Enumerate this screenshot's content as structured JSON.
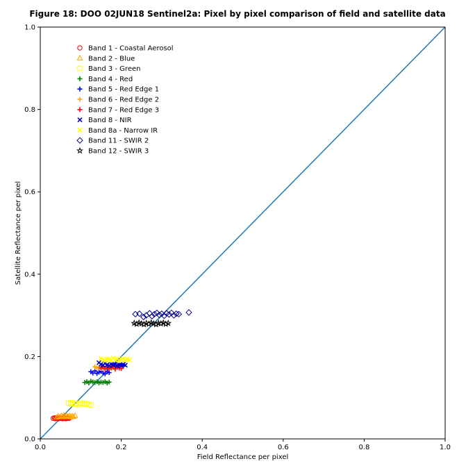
{
  "chart_data": {
    "type": "scatter",
    "title": "Figure 18: DOO 02JUN18  Sentinel2a: Pixel by pixel comparison of field and satellite data",
    "xlabel": "Field Reflectance per pixel",
    "ylabel": "Satellite Reflectance per pixel",
    "xlim": [
      0,
      1
    ],
    "ylim": [
      0,
      1
    ],
    "x_ticks": [
      "0.0",
      "0.2",
      "0.4",
      "0.6",
      "0.8",
      "1.0"
    ],
    "y_ticks": [
      "0.0",
      "0.2",
      "0.4",
      "0.6",
      "0.8",
      "1.0"
    ],
    "grid": false,
    "legend_position": "top-left",
    "reference_line": {
      "x": [
        0,
        1
      ],
      "y": [
        0,
        1
      ],
      "color": "#1f77b4"
    },
    "series": [
      {
        "name": "Band 1 - Coastal Aerosol",
        "marker": "circle",
        "color": "#ff0000",
        "fill": "none",
        "x": [
          0.032,
          0.035,
          0.037,
          0.039,
          0.041,
          0.043,
          0.045,
          0.047,
          0.049,
          0.051,
          0.053,
          0.055,
          0.057,
          0.059,
          0.061,
          0.063,
          0.065,
          0.067,
          0.069,
          0.071
        ],
        "y": [
          0.05,
          0.051,
          0.049,
          0.05,
          0.051,
          0.05,
          0.049,
          0.051,
          0.05,
          0.05,
          0.051,
          0.049,
          0.05,
          0.051,
          0.05,
          0.049,
          0.05,
          0.051,
          0.05,
          0.05
        ]
      },
      {
        "name": "Band 2 - Blue",
        "marker": "triangle",
        "color": "#ffa500",
        "fill": "none",
        "x": [
          0.04,
          0.044,
          0.048,
          0.052,
          0.055,
          0.058,
          0.061,
          0.064,
          0.067,
          0.07,
          0.073,
          0.076,
          0.079,
          0.082,
          0.086
        ],
        "y": [
          0.052,
          0.055,
          0.053,
          0.056,
          0.054,
          0.057,
          0.053,
          0.056,
          0.055,
          0.054,
          0.056,
          0.053,
          0.055,
          0.054,
          0.056
        ]
      },
      {
        "name": "Band 3 - Green",
        "marker": "square",
        "color": "#ffff00",
        "fill": "none",
        "x": [
          0.07,
          0.075,
          0.08,
          0.085,
          0.09,
          0.095,
          0.1,
          0.105,
          0.11,
          0.115,
          0.12,
          0.125
        ],
        "y": [
          0.087,
          0.085,
          0.088,
          0.084,
          0.086,
          0.083,
          0.087,
          0.085,
          0.084,
          0.086,
          0.083,
          0.082
        ]
      },
      {
        "name": "Band 4 - Red",
        "marker": "plus",
        "color": "#008000",
        "fill": "none",
        "x": [
          0.11,
          0.115,
          0.12,
          0.125,
          0.13,
          0.135,
          0.14,
          0.145,
          0.15,
          0.155,
          0.16,
          0.165,
          0.17
        ],
        "y": [
          0.137,
          0.139,
          0.136,
          0.14,
          0.138,
          0.137,
          0.139,
          0.136,
          0.138,
          0.137,
          0.139,
          0.136,
          0.138
        ]
      },
      {
        "name": "Band 5 - Red Edge 1",
        "marker": "plus",
        "color": "#0000ff",
        "fill": "none",
        "x": [
          0.125,
          0.13,
          0.135,
          0.14,
          0.145,
          0.15,
          0.155,
          0.16,
          0.165,
          0.17,
          0.175,
          0.18,
          0.185,
          0.19,
          0.195,
          0.2,
          0.205
        ],
        "y": [
          0.163,
          0.16,
          0.165,
          0.159,
          0.162,
          0.164,
          0.16,
          0.158,
          0.163,
          0.161,
          0.175,
          0.178,
          0.18,
          0.176,
          0.179,
          0.181,
          0.177
        ]
      },
      {
        "name": "Band 6 - Red Edge 2",
        "marker": "plus",
        "color": "#ffa500",
        "fill": "none",
        "x": [
          0.135,
          0.14,
          0.145,
          0.15,
          0.155,
          0.16,
          0.165,
          0.17,
          0.175,
          0.18,
          0.185
        ],
        "y": [
          0.175,
          0.172,
          0.174,
          0.171,
          0.173,
          0.17,
          0.174,
          0.172,
          0.171,
          0.173,
          0.17
        ]
      },
      {
        "name": "Band 7 - Red Edge 3",
        "marker": "plus",
        "color": "#ff0000",
        "fill": "none",
        "x": [
          0.15,
          0.155,
          0.16,
          0.165,
          0.17,
          0.175,
          0.18,
          0.185,
          0.19,
          0.195,
          0.2
        ],
        "y": [
          0.172,
          0.175,
          0.17,
          0.174,
          0.171,
          0.173,
          0.176,
          0.17,
          0.174,
          0.172,
          0.171
        ]
      },
      {
        "name": "Band 8 - NIR",
        "marker": "x",
        "color": "#0000cd",
        "fill": "none",
        "x": [
          0.145,
          0.15,
          0.155,
          0.16,
          0.165,
          0.17,
          0.175,
          0.18,
          0.185,
          0.19,
          0.195,
          0.2,
          0.205,
          0.21
        ],
        "y": [
          0.185,
          0.181,
          0.179,
          0.183,
          0.18,
          0.178,
          0.182,
          0.179,
          0.181,
          0.177,
          0.18,
          0.178,
          0.181,
          0.179
        ]
      },
      {
        "name": "Band 8a - Narrow IR",
        "marker": "x",
        "color": "#ffff00",
        "fill": "none",
        "x": [
          0.15,
          0.155,
          0.16,
          0.165,
          0.17,
          0.175,
          0.18,
          0.185,
          0.19,
          0.195,
          0.2,
          0.205,
          0.21,
          0.215,
          0.22
        ],
        "y": [
          0.195,
          0.192,
          0.19,
          0.194,
          0.193,
          0.191,
          0.196,
          0.192,
          0.194,
          0.19,
          0.193,
          0.195,
          0.191,
          0.194,
          0.192
        ]
      },
      {
        "name": "Band 11 - SWIR 2",
        "marker": "diamond",
        "color": "#00008b",
        "fill": "none",
        "x": [
          0.235,
          0.245,
          0.255,
          0.262,
          0.27,
          0.276,
          0.282,
          0.288,
          0.294,
          0.3,
          0.306,
          0.312,
          0.318,
          0.324,
          0.33,
          0.336,
          0.342,
          0.367
        ],
        "y": [
          0.303,
          0.304,
          0.296,
          0.3,
          0.305,
          0.298,
          0.303,
          0.306,
          0.301,
          0.304,
          0.299,
          0.305,
          0.302,
          0.306,
          0.3,
          0.304,
          0.303,
          0.307
        ]
      },
      {
        "name": "Band 12 - SWIR 3",
        "marker": "star",
        "color": "#000000",
        "fill": "none",
        "x": [
          0.232,
          0.238,
          0.244,
          0.25,
          0.256,
          0.262,
          0.268,
          0.274,
          0.28,
          0.286,
          0.292,
          0.298,
          0.304,
          0.31,
          0.316
        ],
        "y": [
          0.281,
          0.279,
          0.282,
          0.28,
          0.278,
          0.281,
          0.279,
          0.282,
          0.28,
          0.278,
          0.281,
          0.28,
          0.282,
          0.279,
          0.281
        ]
      }
    ]
  }
}
